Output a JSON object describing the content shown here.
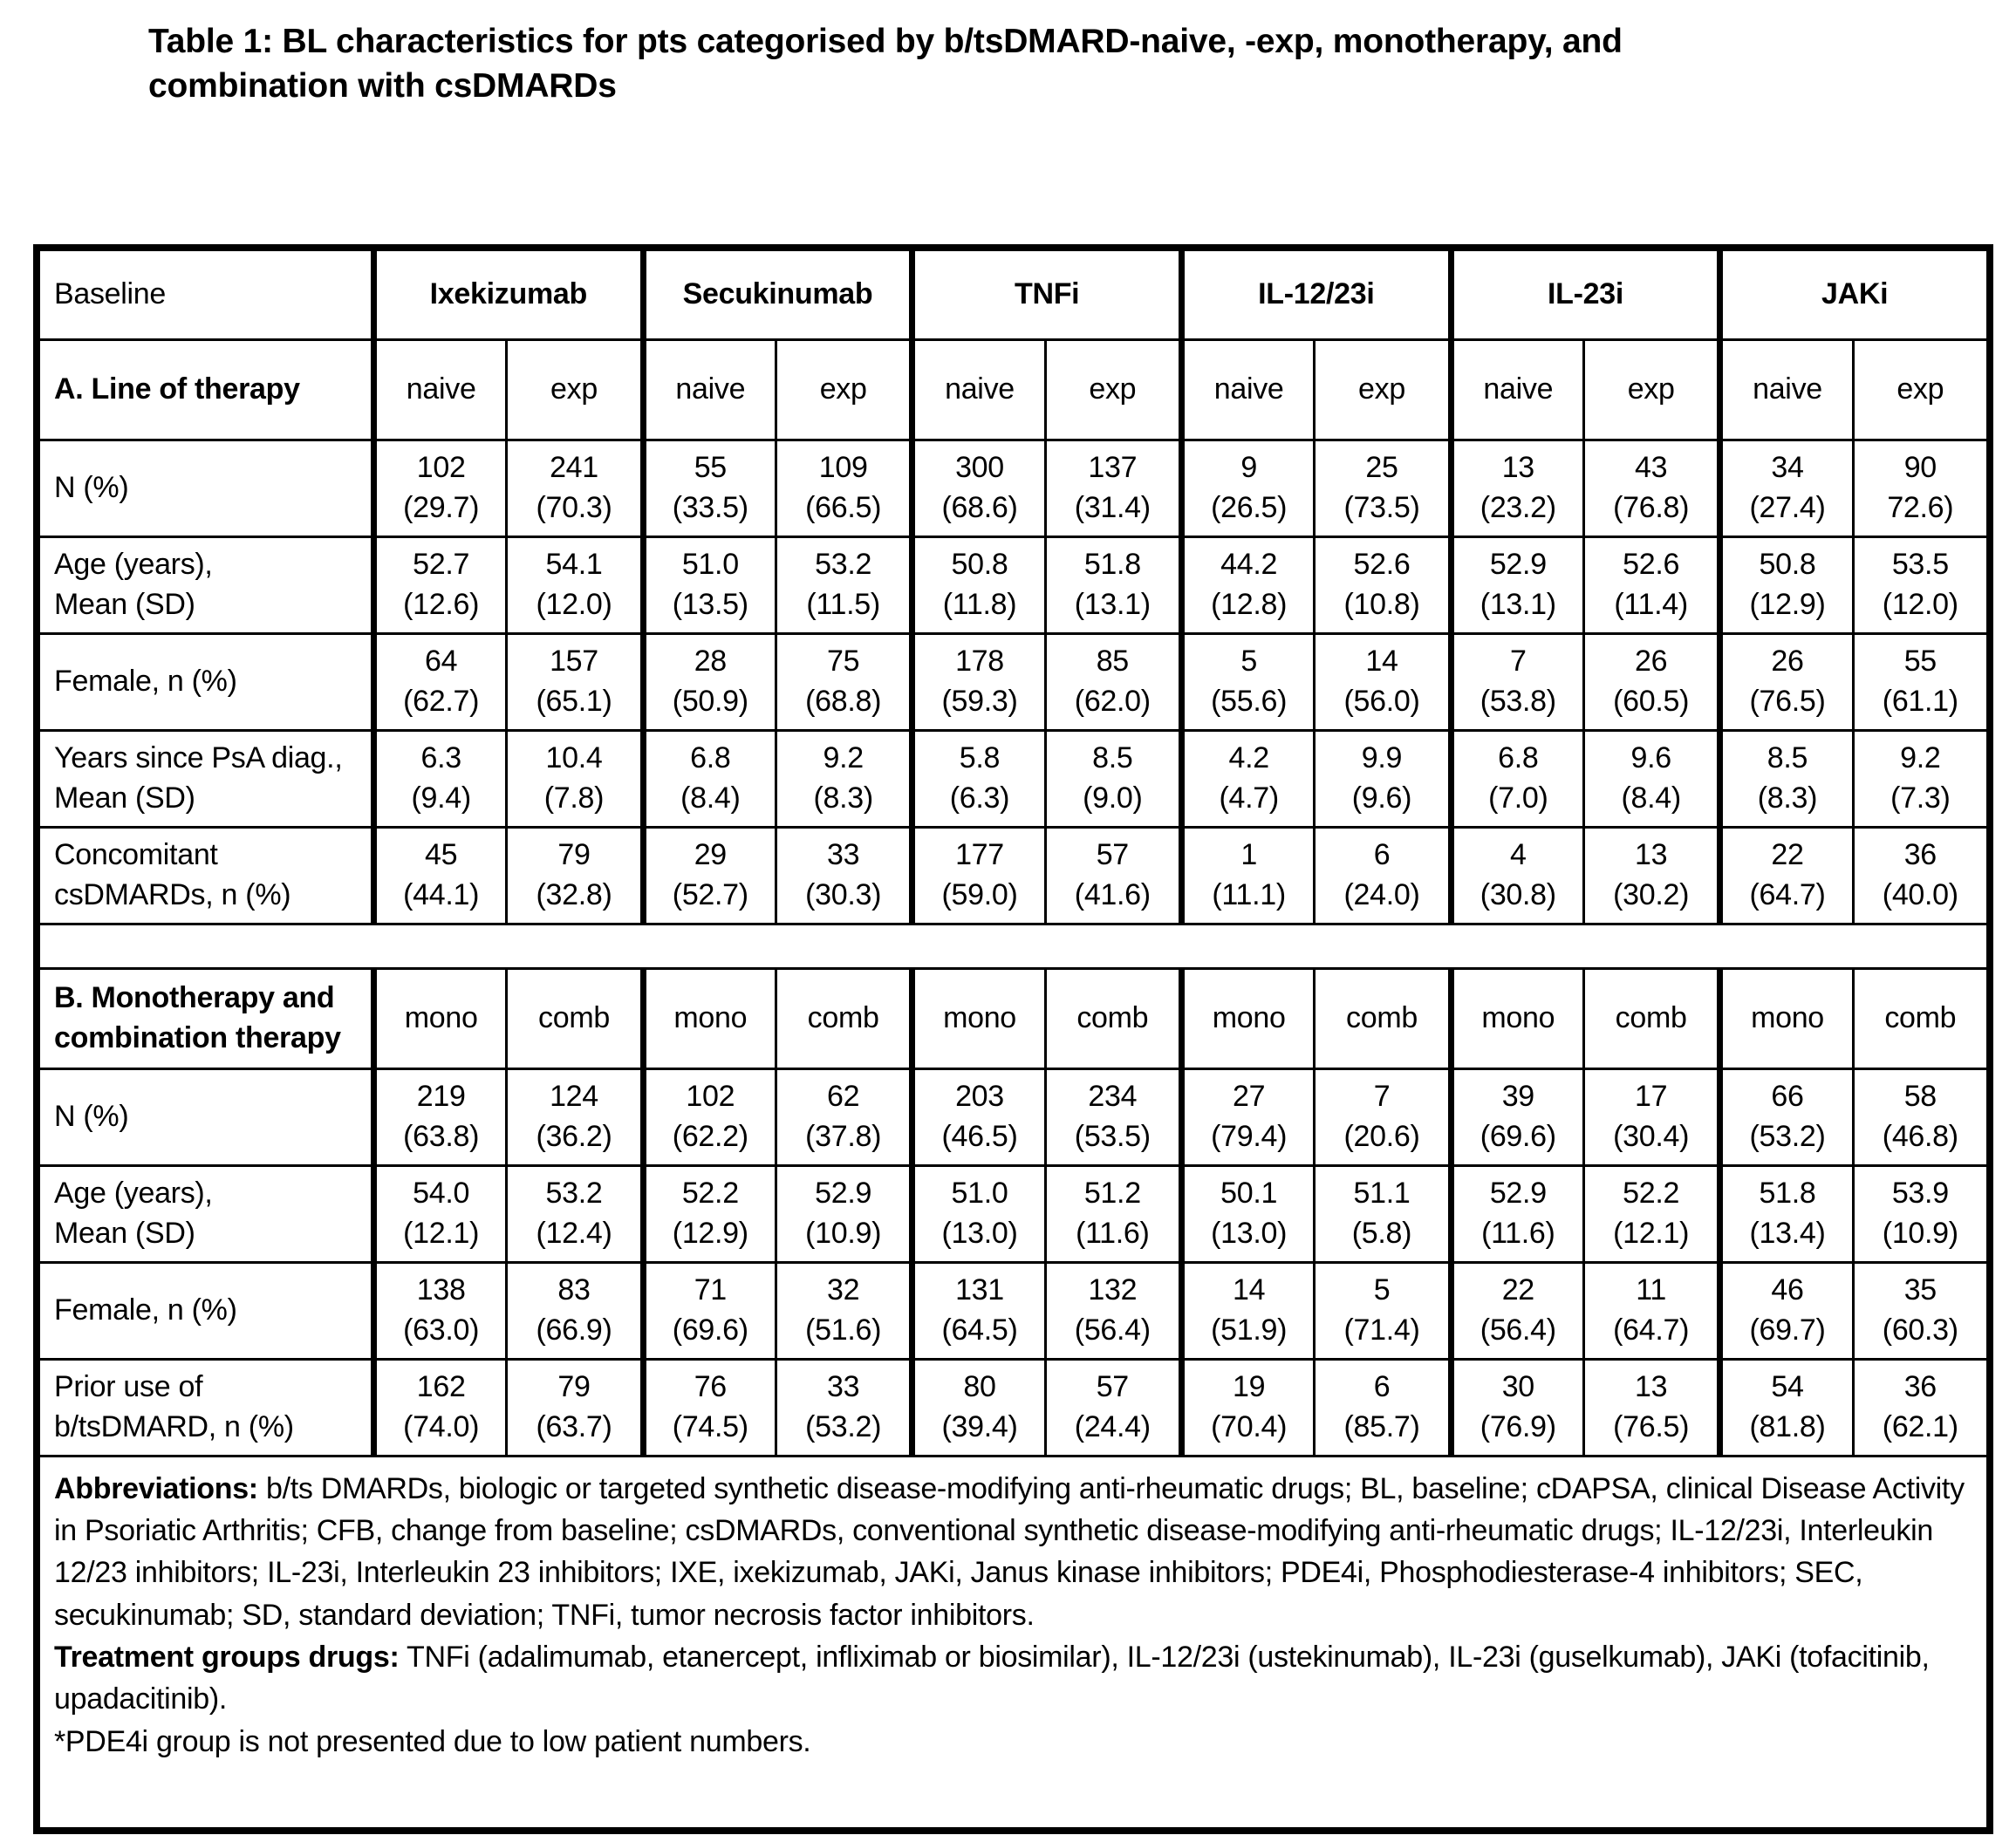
{
  "title": {
    "line1": "Table 1: BL characteristics for pts categorised by b/tsDMARD-naive, -exp, monotherapy, and",
    "line2": "combination with csDMARDs"
  },
  "table": {
    "corner_label": "Baseline",
    "group_headers": [
      "Ixekizumab",
      "Secukinumab",
      "TNFi",
      "IL-12/23i",
      "IL-23i",
      "JAKi"
    ],
    "sections": [
      {
        "header_label": "A. Line of therapy",
        "subcolumns": [
          "naive",
          "exp",
          "naive",
          "exp",
          "naive",
          "exp",
          "naive",
          "exp",
          "naive",
          "exp",
          "naive",
          "exp"
        ],
        "rows": [
          {
            "label": "N (%)",
            "cells": [
              [
                "102",
                "(29.7)"
              ],
              [
                "241",
                "(70.3)"
              ],
              [
                "55",
                "(33.5)"
              ],
              [
                "109",
                "(66.5)"
              ],
              [
                "300",
                "(68.6)"
              ],
              [
                "137",
                "(31.4)"
              ],
              [
                "9",
                "(26.5)"
              ],
              [
                "25",
                "(73.5)"
              ],
              [
                "13",
                "(23.2)"
              ],
              [
                "43",
                "(76.8)"
              ],
              [
                "34",
                "(27.4)"
              ],
              [
                "90",
                "72.6)"
              ]
            ]
          },
          {
            "label": "Age (years),\nMean (SD)",
            "cells": [
              [
                "52.7",
                "(12.6)"
              ],
              [
                "54.1",
                "(12.0)"
              ],
              [
                "51.0",
                "(13.5)"
              ],
              [
                "53.2",
                "(11.5)"
              ],
              [
                "50.8",
                "(11.8)"
              ],
              [
                "51.8",
                "(13.1)"
              ],
              [
                "44.2",
                "(12.8)"
              ],
              [
                "52.6",
                "(10.8)"
              ],
              [
                "52.9",
                "(13.1)"
              ],
              [
                "52.6",
                "(11.4)"
              ],
              [
                "50.8",
                "(12.9)"
              ],
              [
                "53.5",
                "(12.0)"
              ]
            ]
          },
          {
            "label": "Female, n (%)",
            "cells": [
              [
                "64",
                "(62.7)"
              ],
              [
                "157",
                "(65.1)"
              ],
              [
                "28",
                "(50.9)"
              ],
              [
                "75",
                "(68.8)"
              ],
              [
                "178",
                "(59.3)"
              ],
              [
                "85",
                "(62.0)"
              ],
              [
                "5",
                "(55.6)"
              ],
              [
                "14",
                "(56.0)"
              ],
              [
                "7",
                "(53.8)"
              ],
              [
                "26",
                "(60.5)"
              ],
              [
                "26",
                "(76.5)"
              ],
              [
                "55",
                "(61.1)"
              ]
            ]
          },
          {
            "label": "Years since PsA diag.,\nMean (SD)",
            "cells": [
              [
                "6.3",
                "(9.4)"
              ],
              [
                "10.4",
                "(7.8)"
              ],
              [
                "6.8",
                "(8.4)"
              ],
              [
                "9.2",
                "(8.3)"
              ],
              [
                "5.8",
                "(6.3)"
              ],
              [
                "8.5",
                "(9.0)"
              ],
              [
                "4.2",
                "(4.7)"
              ],
              [
                "9.9",
                "(9.6)"
              ],
              [
                "6.8",
                "(7.0)"
              ],
              [
                "9.6",
                "(8.4)"
              ],
              [
                "8.5",
                "(8.3)"
              ],
              [
                "9.2",
                "(7.3)"
              ]
            ]
          },
          {
            "label": "Concomitant\ncsDMARDs, n (%)",
            "cells": [
              [
                "45",
                "(44.1)"
              ],
              [
                "79",
                "(32.8)"
              ],
              [
                "29",
                "(52.7)"
              ],
              [
                "33",
                "(30.3)"
              ],
              [
                "177",
                "(59.0)"
              ],
              [
                "57",
                "(41.6)"
              ],
              [
                "1",
                "(11.1)"
              ],
              [
                "6",
                "(24.0)"
              ],
              [
                "4",
                "(30.8)"
              ],
              [
                "13",
                "(30.2)"
              ],
              [
                "22",
                "(64.7)"
              ],
              [
                "36",
                "(40.0)"
              ]
            ]
          }
        ]
      },
      {
        "header_label": "B. Monotherapy and\ncombination therapy",
        "subcolumns": [
          "mono",
          "comb",
          "mono",
          "comb",
          "mono",
          "comb",
          "mono",
          "comb",
          "mono",
          "comb",
          "mono",
          "comb"
        ],
        "rows": [
          {
            "label": "N (%)",
            "cells": [
              [
                "219",
                "(63.8)"
              ],
              [
                "124",
                "(36.2)"
              ],
              [
                "102",
                "(62.2)"
              ],
              [
                "62",
                "(37.8)"
              ],
              [
                "203",
                "(46.5)"
              ],
              [
                "234",
                "(53.5)"
              ],
              [
                "27",
                "(79.4)"
              ],
              [
                "7",
                "(20.6)"
              ],
              [
                "39",
                "(69.6)"
              ],
              [
                "17",
                "(30.4)"
              ],
              [
                "66",
                "(53.2)"
              ],
              [
                "58",
                "(46.8)"
              ]
            ]
          },
          {
            "label": "Age (years),\nMean (SD)",
            "cells": [
              [
                "54.0",
                "(12.1)"
              ],
              [
                "53.2",
                "(12.4)"
              ],
              [
                "52.2",
                "(12.9)"
              ],
              [
                "52.9",
                "(10.9)"
              ],
              [
                "51.0",
                "(13.0)"
              ],
              [
                "51.2",
                "(11.6)"
              ],
              [
                "50.1",
                "(13.0)"
              ],
              [
                "51.1",
                "(5.8)"
              ],
              [
                "52.9",
                "(11.6)"
              ],
              [
                "52.2",
                "(12.1)"
              ],
              [
                "51.8",
                "(13.4)"
              ],
              [
                "53.9",
                "(10.9)"
              ]
            ]
          },
          {
            "label": "Female, n (%)",
            "cells": [
              [
                "138",
                "(63.0)"
              ],
              [
                "83",
                "(66.9)"
              ],
              [
                "71",
                "(69.6)"
              ],
              [
                "32",
                "(51.6)"
              ],
              [
                "131",
                "(64.5)"
              ],
              [
                "132",
                "(56.4)"
              ],
              [
                "14",
                "(51.9)"
              ],
              [
                "5",
                "(71.4)"
              ],
              [
                "22",
                "(56.4)"
              ],
              [
                "11",
                "(64.7)"
              ],
              [
                "46",
                "(69.7)"
              ],
              [
                "35",
                "(60.3)"
              ]
            ]
          },
          {
            "label": "Prior use of\nb/tsDMARD, n (%)",
            "cells": [
              [
                "162",
                "(74.0)"
              ],
              [
                "79",
                "(63.7)"
              ],
              [
                "76",
                "(74.5)"
              ],
              [
                "33",
                "(53.2)"
              ],
              [
                "80",
                "(39.4)"
              ],
              [
                "57",
                "(24.4)"
              ],
              [
                "19",
                "(70.4)"
              ],
              [
                "6",
                "(85.7)"
              ],
              [
                "30",
                "(76.9)"
              ],
              [
                "13",
                "(76.5)"
              ],
              [
                "54",
                "(81.8)"
              ],
              [
                "36",
                "(62.1)"
              ]
            ]
          }
        ]
      }
    ]
  },
  "footnotes": {
    "abbreviations_label": "Abbreviations:",
    "abbreviations_text": " b/ts DMARDs, biologic or targeted synthetic disease-modifying anti-rheumatic drugs; BL, baseline; cDAPSA, clinical Disease Activity in Psoriatic Arthritis; CFB, change from baseline; csDMARDs, conventional synthetic disease-modifying anti-rheumatic drugs; IL-12/23i, Interleukin 12/23 inhibitors; IL-23i, Interleukin 23 inhibitors; IXE, ixekizumab, JAKi, Janus kinase inhibitors; PDE4i, Phosphodiesterase-4 inhibitors; SEC, secukinumab; SD, standard deviation; TNFi, tumor necrosis factor inhibitors.",
    "treatment_label": "Treatment groups drugs:",
    "treatment_text": " TNFi (adalimumab, etanercept, infliximab or biosimilar), IL-12/23i (ustekinumab), IL-23i (guselkumab), JAKi (tofacitinib, upadacitinib).",
    "pde4i_note": "*PDE4i group is not presented due to low patient numbers."
  }
}
